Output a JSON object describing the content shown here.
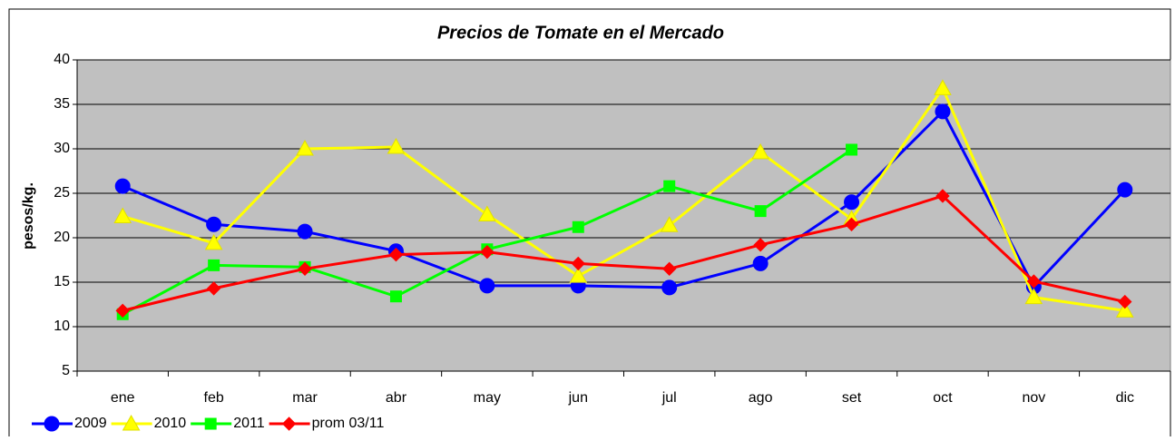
{
  "chart_data": {
    "type": "line",
    "title": "Precios de Tomate en el Mercado",
    "y_label": "pesos/kg.",
    "categories": [
      "ene",
      "feb",
      "mar",
      "abr",
      "may",
      "jun",
      "jul",
      "ago",
      "set",
      "oct",
      "nov",
      "dic"
    ],
    "series": [
      {
        "name": "2009",
        "color": "#0000ff",
        "marker": "circle",
        "values": [
          25.8,
          21.5,
          20.7,
          18.5,
          14.6,
          14.6,
          14.4,
          17.1,
          24.0,
          34.2,
          14.5,
          25.4
        ]
      },
      {
        "name": "2010",
        "color": "#ffff00",
        "marker": "triangle",
        "values": [
          22.4,
          19.4,
          30.0,
          30.2,
          22.6,
          15.7,
          21.4,
          29.6,
          22.1,
          36.8,
          13.3,
          11.8
        ]
      },
      {
        "name": "2011",
        "color": "#00ff00",
        "marker": "square",
        "values": [
          11.4,
          16.9,
          16.7,
          13.4,
          18.7,
          21.2,
          25.8,
          23.0,
          29.9,
          null,
          null,
          null
        ]
      },
      {
        "name": "prom 03/11",
        "color": "#ff0000",
        "marker": "diamond",
        "values": [
          11.8,
          14.3,
          16.5,
          18.1,
          18.4,
          17.1,
          16.5,
          19.2,
          21.5,
          24.7,
          15.1,
          12.8
        ]
      }
    ],
    "ylim": [
      5,
      40
    ],
    "yticks": [
      5,
      10,
      15,
      20,
      25,
      30,
      35,
      40
    ],
    "grid": true,
    "legend": "bottom-left"
  }
}
